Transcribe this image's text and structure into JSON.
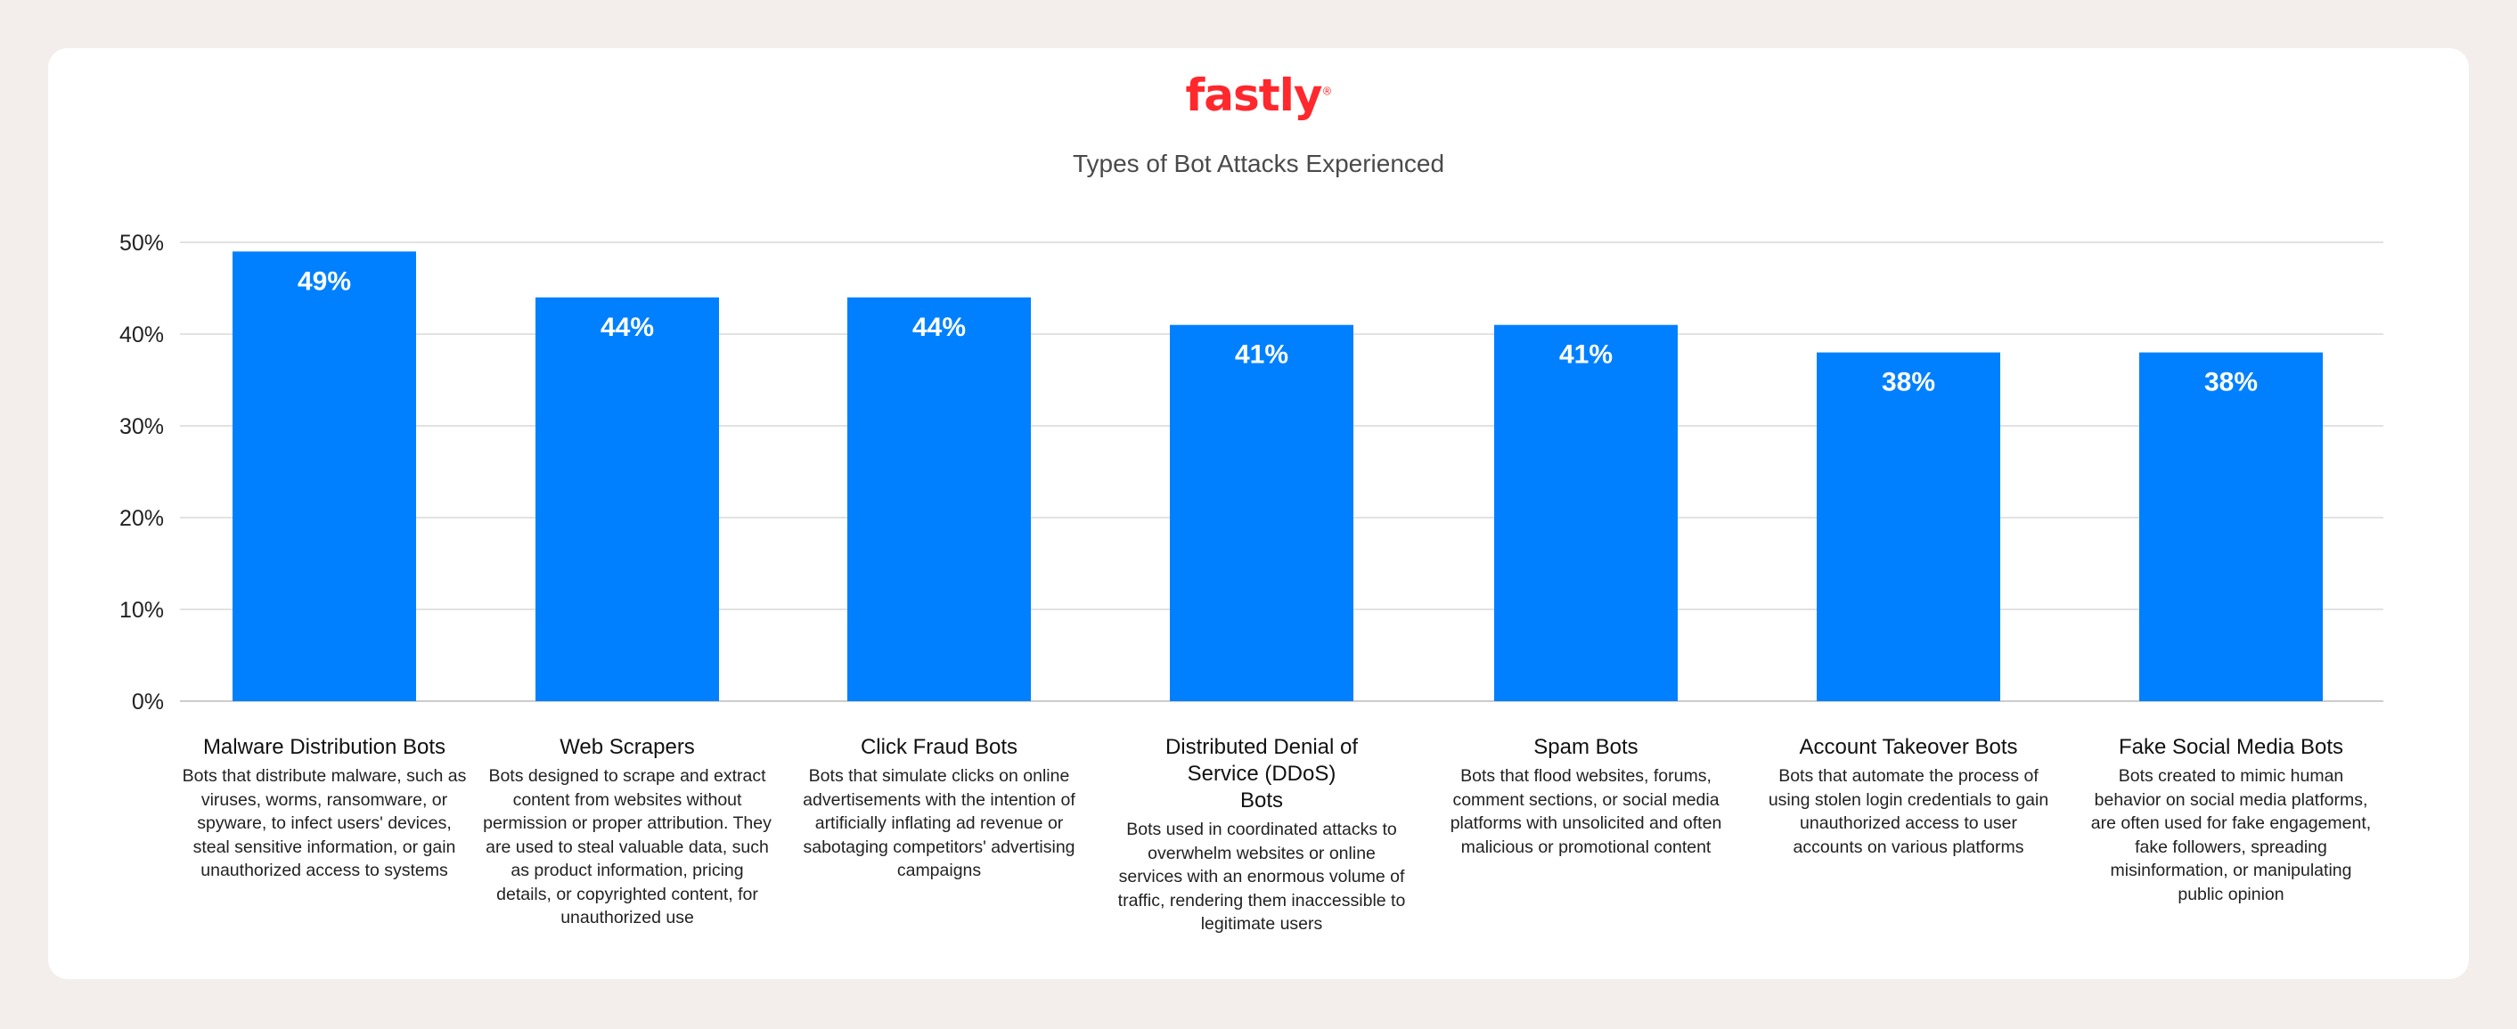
{
  "logo": {
    "text": "fastly",
    "color": "#ff282d"
  },
  "chart_data": {
    "type": "bar",
    "title": "Types of Bot Attacks Experienced",
    "xlabel": "",
    "ylabel": "",
    "ylim": [
      0,
      50
    ],
    "yticks": [
      "0%",
      "10%",
      "20%",
      "30%",
      "40%",
      "50%"
    ],
    "grid": true,
    "bar_color": "#0080ff",
    "categories": [
      "Malware Distribution Bots",
      "Web Scrapers",
      "Click Fraud Bots",
      "Distributed Denial of Service (DDoS) Bots",
      "Spam Bots",
      "Account Takeover Bots",
      "Fake Social Media Bots"
    ],
    "values": [
      49,
      44,
      44,
      41,
      41,
      38,
      38
    ],
    "data_labels": [
      "49%",
      "44%",
      "44%",
      "41%",
      "41%",
      "38%",
      "38%"
    ],
    "descriptions": [
      "Bots that distribute malware, such as viruses, worms, ransomware, or spyware, to infect users' devices, steal sensitive information, or gain unauthorized access to systems",
      "Bots designed to scrape and extract content from websites without permission or proper attribution. They are used to steal valuable data, such as product information, pricing details, or copyrighted content, for unauthorized use",
      "Bots that simulate clicks on online advertisements with the intention of artificially inflating ad revenue or sabotaging competitors' advertising campaigns",
      "Bots used in coordinated attacks to overwhelm websites or online services with an enormous volume of traffic, rendering them inaccessible to legitimate users",
      "Bots that flood websites, forums, comment sections, or social media platforms with unsolicited and often malicious or promotional content",
      "Bots that automate the process of using stolen login credentials to gain unauthorized access to user accounts on various platforms",
      "Bots created to mimic human behavior on social media platforms, are often used for fake engagement, fake followers, spreading misinformation, or manipulating public opinion"
    ]
  }
}
